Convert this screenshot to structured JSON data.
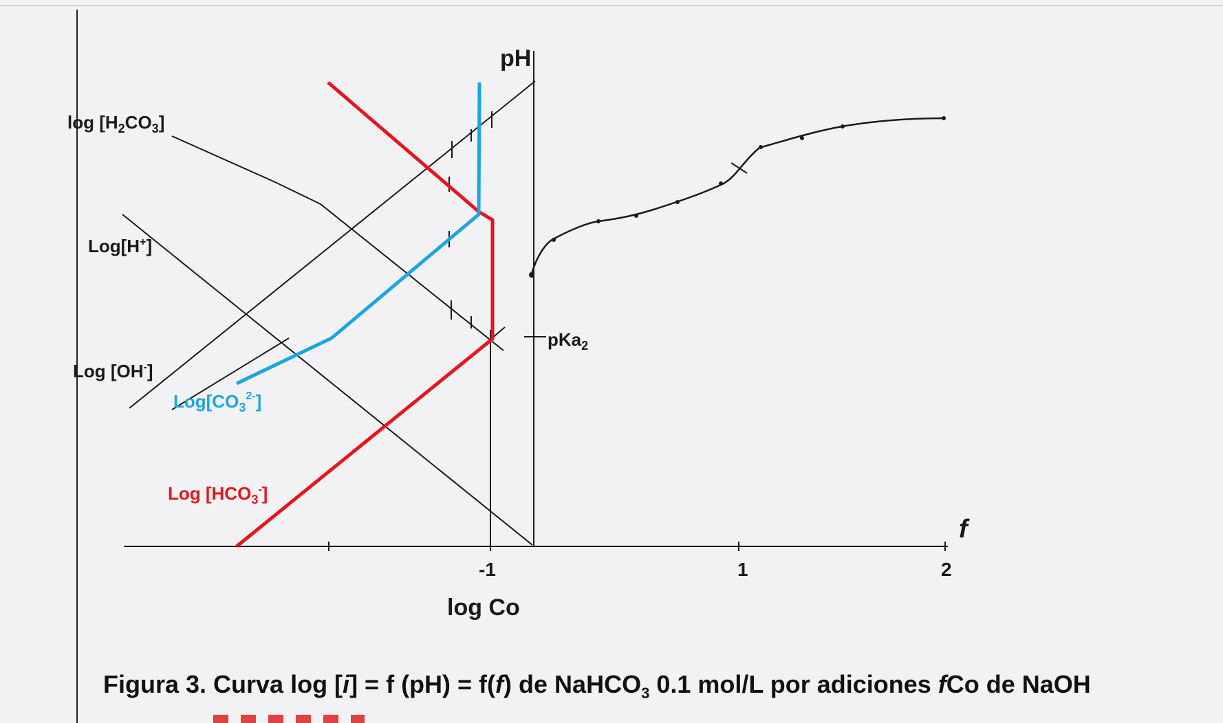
{
  "axes": {
    "y_label": "pH",
    "x_label": "log Co",
    "f_label": "f",
    "ticks": [
      "-1",
      "1",
      "2"
    ],
    "pka_label": "pKa",
    "pka_sub": "2"
  },
  "series_labels": {
    "h2co3": {
      "pre": "log [H",
      "sub1": "2",
      "mid": "CO",
      "sub2": "3",
      "post": "]"
    },
    "h": {
      "pre": "Log[H",
      "sup": "+",
      "post": "]"
    },
    "oh": {
      "pre": "Log [OH",
      "sup": "-",
      "post": "]"
    },
    "co3": {
      "pre": "Log[CO",
      "sub": "3",
      "sup": "2-",
      "post": "]"
    },
    "hco3": {
      "pre": "Log [HCO",
      "sub": "3",
      "sup": "-",
      "post": "]"
    }
  },
  "caption": {
    "part1": "Figura 3. Curva log [",
    "i": "i",
    "part2": "] = f (pH) = f(",
    "f": "f",
    "part3": ") de NaHCO",
    "sub3": "3",
    "part4": " 0.1 mol/L por adiciones ",
    "f2": "f",
    "part5": "Co de NaOH"
  },
  "colors": {
    "ink": "#1a1a1a",
    "red": "#e8141c",
    "cyan": "#1aa6e0",
    "paper": "#f2f2f4"
  }
}
